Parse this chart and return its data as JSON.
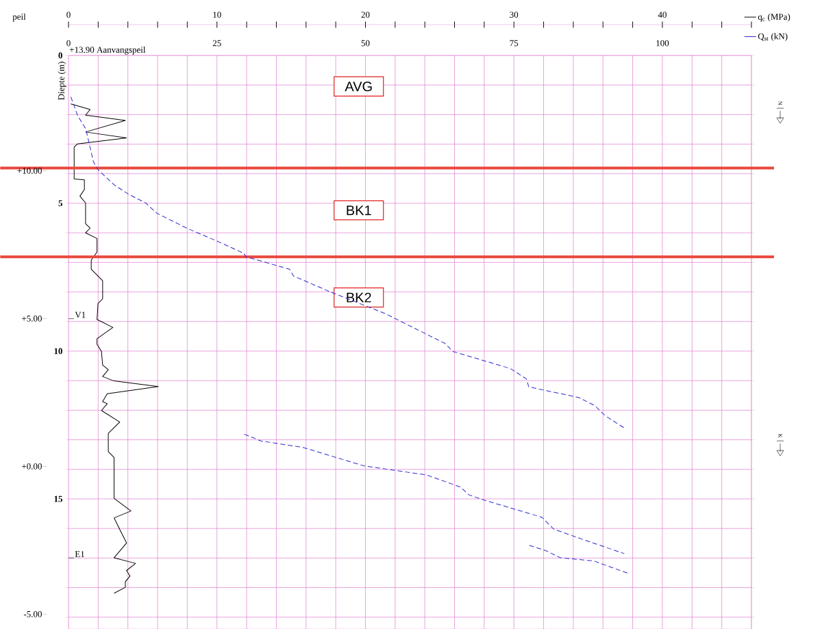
{
  "chart_data": {
    "type": "line",
    "series": [
      {
        "name": "q$_{c}$ (MPa)",
        "color": "#000000",
        "line_style": "solid",
        "x": [
          0.15,
          1.46,
          1.15,
          3.83,
          1.15,
          3.91,
          0.61,
          0.38,
          0.38,
          1.07,
          1.07,
          0.77,
          1.15,
          1.15,
          1.46,
          1.15,
          1.92,
          1.92,
          1.53,
          1.53,
          2.3,
          2.3,
          1.99,
          1.92,
          2.99,
          1.92,
          1.92,
          2.22,
          2.3,
          2.68,
          2.3,
          3.07,
          6.05,
          2.61,
          2.3,
          2.61,
          2.22,
          3.45,
          2.68,
          2.68,
          3.07,
          3.07,
          4.21,
          3.07,
          3.45,
          3.91,
          3.07,
          4.52,
          3.91,
          4.14,
          3.83,
          3.83,
          3.07
        ],
        "values": [
          1.64,
          1.83,
          2.02,
          2.2,
          2.59,
          2.79,
          2.99,
          3.1,
          4.18,
          4.21,
          4.53,
          4.76,
          4.99,
          5.69,
          5.84,
          6.0,
          6.19,
          6.65,
          6.92,
          7.23,
          7.62,
          8.23,
          8.39,
          8.93,
          9.2,
          9.58,
          9.77,
          10.01,
          10.47,
          10.63,
          10.86,
          11.01,
          11.2,
          11.44,
          11.71,
          11.78,
          12.01,
          12.4,
          12.78,
          13.4,
          13.6,
          14.98,
          15.41,
          15.64,
          16.03,
          16.49,
          16.99,
          17.18,
          17.42,
          17.61,
          17.8,
          17.99,
          18.19
        ]
      },
      {
        "name": "Q$_{st}$ (kN)",
        "color": "#2b2bd0",
        "line_style": "dashed",
        "axis": "x2",
        "x": [
          0.4,
          1.5,
          2.9,
          3.5,
          4.2,
          5.0,
          7.7,
          10.0,
          13.0,
          14.9,
          19.9,
          24.9,
          29.5,
          29.9,
          37.2,
          37.9,
          44.1,
          53.2,
          59.9,
          63.4,
          64.7,
          74.4,
          77.1,
          77.5,
          85.9,
          88.6,
          90.4,
          93.9,
          null,
          29.6,
          32.4,
          39.5,
          49.7,
          60.3,
          66.0,
          67.4,
          70.0,
          79.7,
          81.7,
          87.3,
          93.6,
          null,
          77.6,
          80.5,
          82.8,
          88.5,
          90.8,
          94.3
        ],
        "values": [
          1.4,
          2.02,
          2.48,
          2.99,
          3.6,
          3.87,
          4.38,
          4.68,
          4.99,
          5.34,
          5.84,
          6.27,
          6.69,
          6.81,
          7.23,
          7.46,
          8.0,
          8.72,
          9.39,
          9.74,
          10.01,
          10.59,
          10.94,
          11.21,
          11.57,
          11.84,
          12.19,
          12.64,
          null,
          12.81,
          13.04,
          13.26,
          13.88,
          14.19,
          14.6,
          14.86,
          15.04,
          15.62,
          16.02,
          16.42,
          16.85,
          null,
          16.57,
          16.76,
          16.99,
          17.1,
          17.27,
          17.52
        ]
      }
    ],
    "ylabel": "Diepte (m)",
    "y2label": "peil",
    "xlim": [
      0,
      46
    ],
    "ylim": [
      19.4,
      0
    ],
    "x2lim": [
      0,
      115
    ],
    "y2lim": [
      -5.5,
      13.9
    ],
    "xticks": [
      0,
      {
        "value": 2,
        "label": null
      },
      {
        "value": 4,
        "label": null
      },
      {
        "value": 6,
        "label": null
      },
      {
        "value": 8,
        "label": null
      },
      10,
      {
        "value": 12,
        "label": null
      },
      {
        "value": 14,
        "label": null
      },
      {
        "value": 16,
        "label": null
      },
      {
        "value": 18,
        "label": null
      },
      20,
      {
        "value": 22,
        "label": null
      },
      {
        "value": 24,
        "label": null
      },
      {
        "value": 26,
        "label": null
      },
      {
        "value": 28,
        "label": null
      },
      30,
      {
        "value": 32,
        "label": null
      },
      {
        "value": 34,
        "label": null
      },
      {
        "value": 36,
        "label": null
      },
      {
        "value": 38,
        "label": null
      },
      40,
      {
        "value": 42,
        "label": null
      },
      {
        "value": 44,
        "label": null
      },
      {
        "value": 46,
        "label": null
      }
    ],
    "x2ticks": [
      0,
      25,
      50,
      75,
      100
    ],
    "yticks": [
      0,
      {
        "value": 1,
        "label": null
      },
      {
        "value": 2,
        "label": null
      },
      {
        "value": 3,
        "label": null
      },
      {
        "value": 4,
        "label": null
      },
      5,
      {
        "value": 6,
        "label": null
      },
      {
        "value": 7,
        "label": null
      },
      {
        "value": 8,
        "label": null
      },
      {
        "value": 9,
        "label": null
      },
      10,
      {
        "value": 11,
        "label": null
      },
      {
        "value": 12,
        "label": null
      },
      {
        "value": 13,
        "label": null
      },
      {
        "value": 14,
        "label": null
      },
      15,
      {
        "value": 16,
        "label": null
      },
      {
        "value": 17,
        "label": null
      },
      {
        "value": 18,
        "label": null
      },
      {
        "value": 19,
        "label": null
      }
    ],
    "y2ticks": [
      {
        "value": 10,
        "label": "+10.00"
      },
      {
        "value": 5,
        "label": "+5.00"
      },
      {
        "value": 0,
        "label": "+0.00"
      },
      {
        "value": -5,
        "label": "-5.00"
      }
    ],
    "ref_lines": [
      {
        "axis": "y",
        "value": 3.81,
        "color": "#e8473c"
      },
      {
        "axis": "y",
        "value": 6.81,
        "color": "#e8473c"
      }
    ],
    "annotations": [
      "+13.90 Aanvangspeil",
      "AVG",
      "BK1",
      "BK2",
      "V1",
      "E1",
      "N",
      "K"
    ],
    "grid": true,
    "legend": "top right"
  }
}
